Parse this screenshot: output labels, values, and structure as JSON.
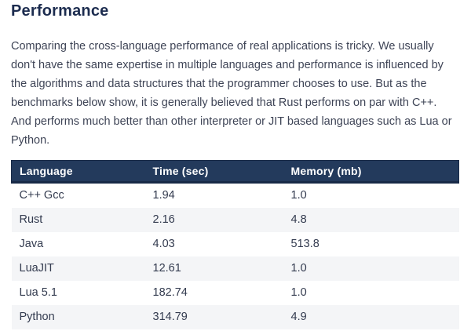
{
  "page": {
    "title": "Performance",
    "paragraph": "Comparing the cross-language performance of real applications is tricky. We usually don't have the same expertise in multiple languages and performance is influenced by the algorithms and data structures that the programmer chooses to use. But as the benchmarks below show, it is generally believed that Rust performs on par with C++. And performs much better than other interpreter or JIT based languages such as Lua or Python."
  },
  "table": {
    "columns": [
      "Language",
      "Time (sec)",
      "Memory (mb)"
    ],
    "rows": [
      {
        "language": "C++ Gcc",
        "time": "1.94",
        "memory": "1.0"
      },
      {
        "language": "Rust",
        "time": "2.16",
        "memory": "4.8"
      },
      {
        "language": "Java",
        "time": "4.03",
        "memory": "513.8"
      },
      {
        "language": "LuaJIT",
        "time": "12.61",
        "memory": "1.0"
      },
      {
        "language": "Lua 5.1",
        "time": "182.74",
        "memory": "1.0"
      },
      {
        "language": "Python",
        "time": "314.79",
        "memory": "4.9"
      }
    ]
  },
  "colors": {
    "header_bg": "#233a5c",
    "header_border": "#182a47",
    "header_text": "#ffffff",
    "row_alt_bg": "#f4f5f7",
    "heading_text": "#1c2c4f",
    "body_text": "#3e4456",
    "cell_text": "#333b4f"
  }
}
